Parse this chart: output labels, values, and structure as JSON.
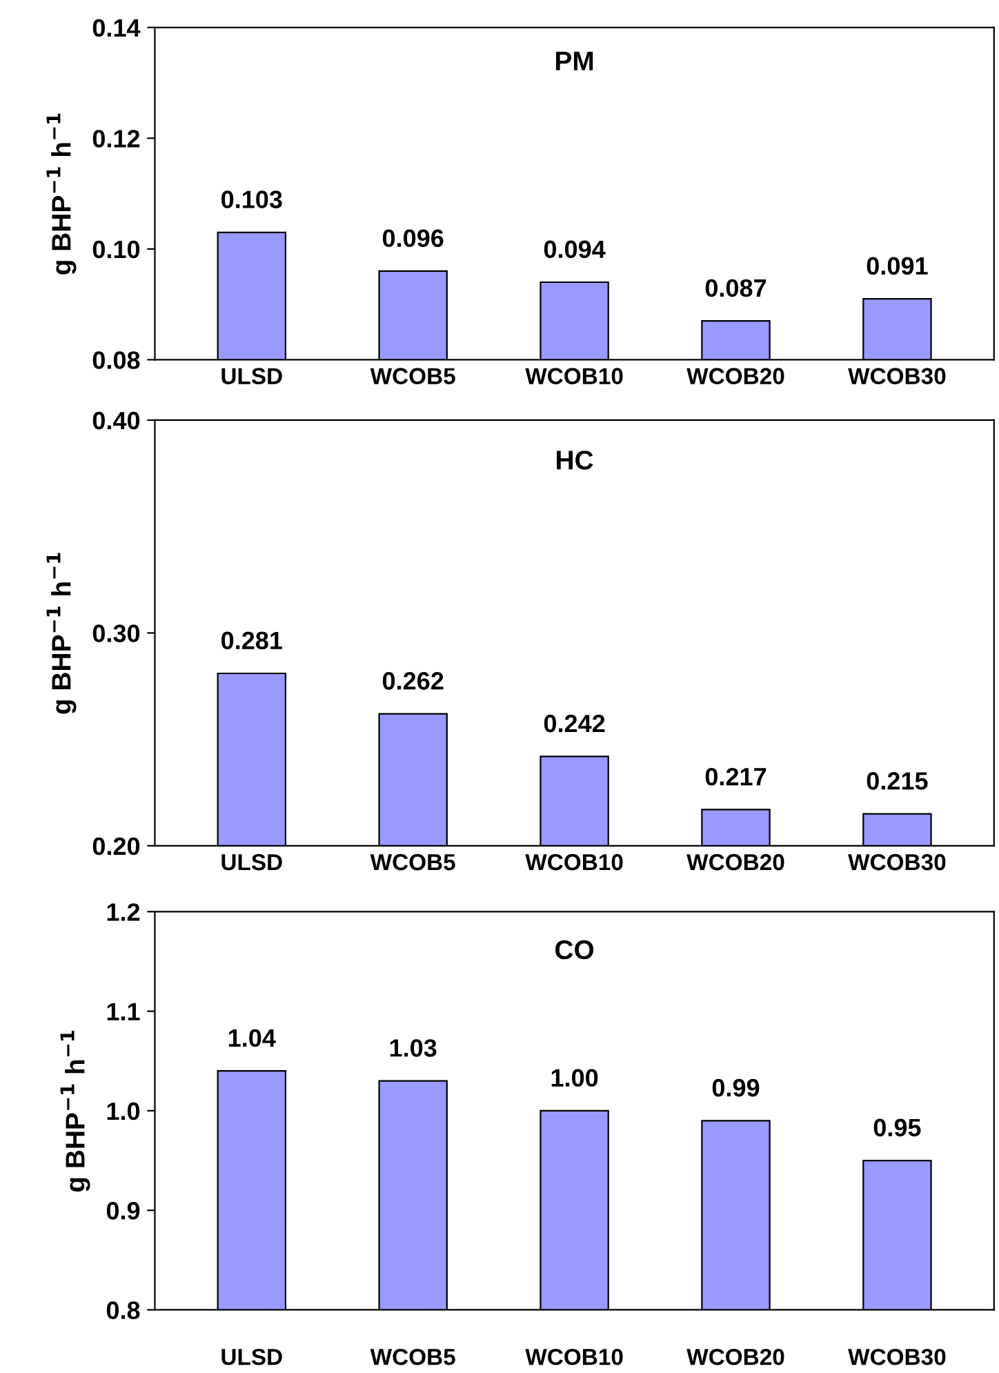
{
  "chart_data": [
    {
      "type": "bar",
      "title": "PM",
      "ylabel": "g BHP$^{−1}$ h$^{−1}$",
      "categories": [
        "ULSD",
        "WCOB5",
        "WCOB10",
        "WCOB20",
        "WCOB30"
      ],
      "values": [
        0.103,
        0.096,
        0.094,
        0.087,
        0.091
      ],
      "value_labels": [
        "0.103",
        "0.096",
        "0.094",
        "0.087",
        "0.091"
      ],
      "color": "#9999ff",
      "ylim": [
        0.08,
        0.14
      ],
      "yticks": [
        {
          "value": 0.08,
          "label": "0.08"
        },
        {
          "value": 0.1,
          "label": "0.10"
        },
        {
          "value": 0.12,
          "label": "0.12"
        },
        {
          "value": 0.14,
          "label": "0.14"
        }
      ],
      "grid": false,
      "legend": false
    },
    {
      "type": "bar",
      "title": "HC",
      "ylabel": "g BHP$^{−1}$ h$^{−1}$",
      "categories": [
        "ULSD",
        "WCOB5",
        "WCOB10",
        "WCOB20",
        "WCOB30"
      ],
      "values": [
        0.281,
        0.262,
        0.242,
        0.217,
        0.215
      ],
      "value_labels": [
        "0.281",
        "0.262",
        "0.242",
        "0.217",
        "0.215"
      ],
      "color": "#9999ff",
      "ylim": [
        0.2,
        0.4
      ],
      "yticks": [
        {
          "value": 0.2,
          "label": "0.20"
        },
        {
          "value": 0.3,
          "label": "0.30"
        },
        {
          "value": 0.4,
          "label": "0.40"
        }
      ],
      "grid": false,
      "legend": false
    },
    {
      "type": "bar",
      "title": "CO",
      "ylabel": "g BHP$^{−1}$ h$^{−1}$",
      "categories": [
        "ULSD",
        "WCOB5",
        "WCOB10",
        "WCOB20",
        "WCOB30"
      ],
      "values": [
        1.04,
        1.03,
        1.0,
        0.99,
        0.95
      ],
      "value_labels": [
        "1.04",
        "1.03",
        "1.00",
        "0.99",
        "0.95"
      ],
      "color": "#9999ff",
      "ylim": [
        0.8,
        1.2
      ],
      "yticks": [
        {
          "value": 0.8,
          "label": "0.8"
        },
        {
          "value": 0.9,
          "label": "0.9"
        },
        {
          "value": 1.0,
          "label": "1.0"
        },
        {
          "value": 1.1,
          "label": "1.1"
        },
        {
          "value": 1.2,
          "label": "1.2"
        }
      ],
      "grid": false,
      "legend": false
    }
  ]
}
